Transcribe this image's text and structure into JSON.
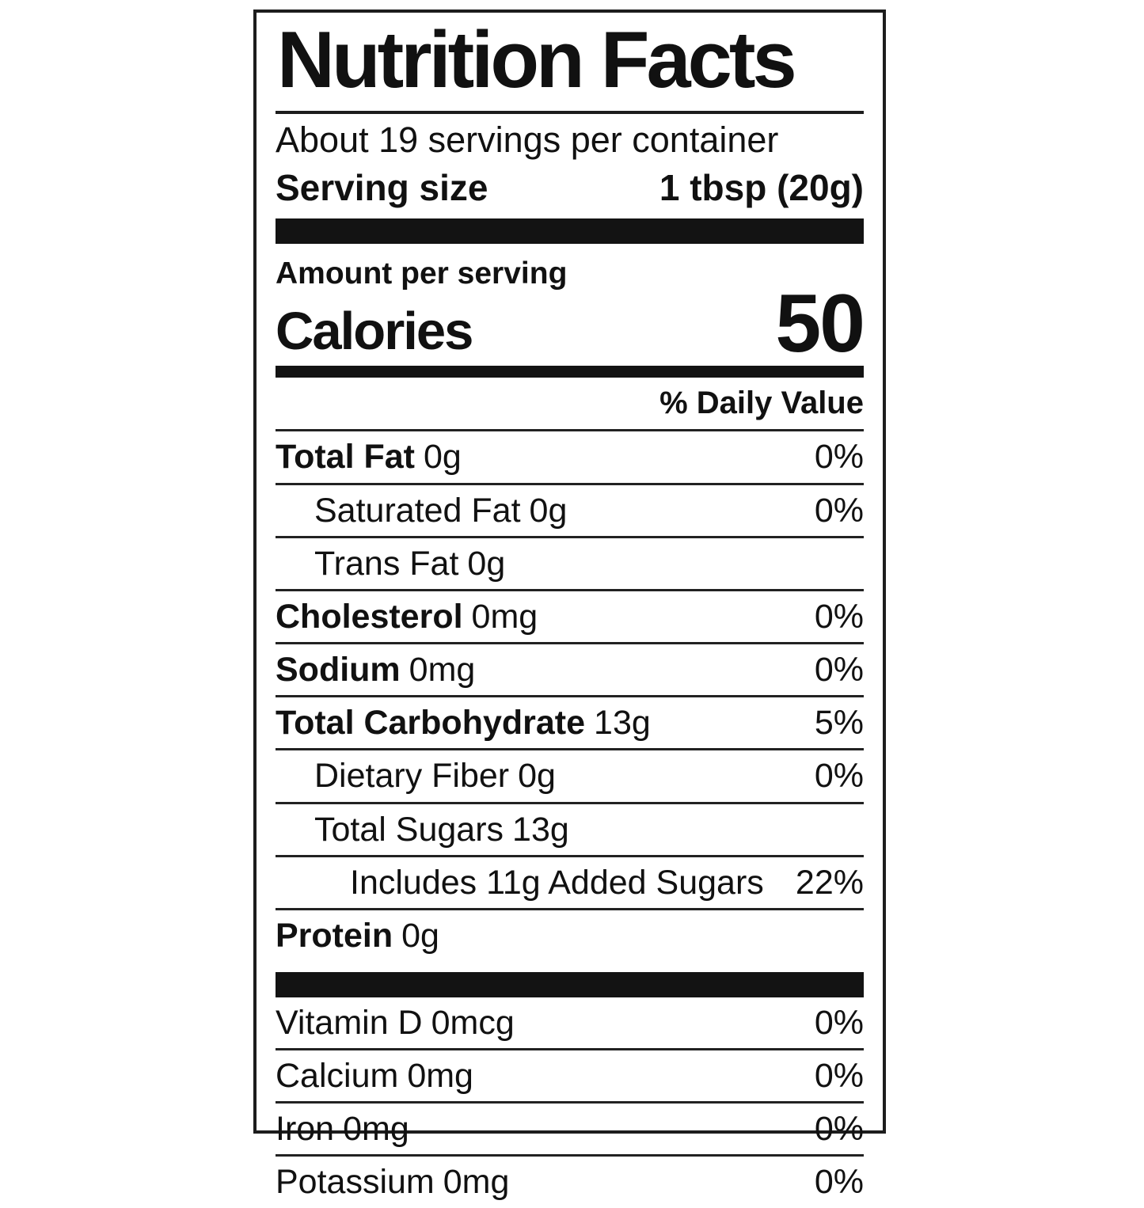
{
  "label": {
    "title": "Nutrition Facts",
    "servings_per_container": "About 19 servings per container",
    "serving_size_label": "Serving size",
    "serving_size_value": "1 tbsp (20g)",
    "amount_per_serving": "Amount per serving",
    "calories_label": "Calories",
    "calories_value": "50",
    "daily_value_header": "% Daily Value",
    "nutrients": [
      {
        "name": "Total Fat",
        "amount": "0g",
        "dv": "0%"
      },
      {
        "name": "Saturated Fat",
        "amount": "0g",
        "dv": "0%"
      },
      {
        "name": "Trans Fat",
        "amount": "0g",
        "dv": ""
      },
      {
        "name": "Cholesterol",
        "amount": "0mg",
        "dv": "0%"
      },
      {
        "name": "Sodium",
        "amount": "0mg",
        "dv": "0%"
      },
      {
        "name": "Total Carbohydrate",
        "amount": "13g",
        "dv": "5%"
      },
      {
        "name": "Dietary Fiber",
        "amount": "0g",
        "dv": "0%"
      },
      {
        "name": "Total Sugars",
        "amount": "13g",
        "dv": ""
      },
      {
        "name": "Includes 11g Added Sugars",
        "amount": "",
        "dv": "22%"
      },
      {
        "name": "Protein",
        "amount": "0g",
        "dv": ""
      }
    ],
    "micronutrients": [
      {
        "name": "Vitamin D",
        "amount": "0mcg",
        "dv": "0%"
      },
      {
        "name": "Calcium",
        "amount": "0mg",
        "dv": "0%"
      },
      {
        "name": "Iron",
        "amount": "0mg",
        "dv": "0%"
      },
      {
        "name": "Potassium",
        "amount": "0mg",
        "dv": "0%"
      }
    ]
  }
}
